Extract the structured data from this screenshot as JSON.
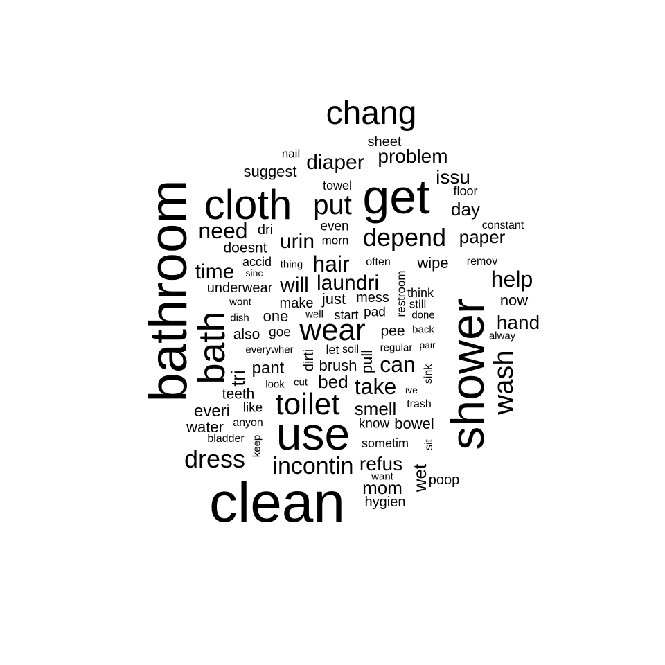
{
  "text_color": "#000000",
  "background": "#ffffff",
  "words": [
    {
      "text": "clean"
    },
    {
      "text": "bathroom"
    },
    {
      "text": "shower"
    },
    {
      "text": "get"
    },
    {
      "text": "use"
    },
    {
      "text": "cloth"
    },
    {
      "text": "bath"
    },
    {
      "text": "chang"
    },
    {
      "text": "wear"
    },
    {
      "text": "toilet"
    },
    {
      "text": "wash"
    },
    {
      "text": "put"
    },
    {
      "text": "depend"
    },
    {
      "text": "dress"
    },
    {
      "text": "incontin"
    },
    {
      "text": "hair"
    },
    {
      "text": "help"
    },
    {
      "text": "need"
    },
    {
      "text": "urin"
    },
    {
      "text": "diaper"
    },
    {
      "text": "problem"
    },
    {
      "text": "time"
    },
    {
      "text": "laundri"
    },
    {
      "text": "will"
    },
    {
      "text": "hand"
    },
    {
      "text": "can"
    },
    {
      "text": "take"
    },
    {
      "text": "issu"
    },
    {
      "text": "day"
    },
    {
      "text": "paper"
    },
    {
      "text": "refus"
    },
    {
      "text": "smell"
    },
    {
      "text": "bed"
    },
    {
      "text": "mom"
    },
    {
      "text": "pant"
    },
    {
      "text": "everi"
    },
    {
      "text": "tri"
    },
    {
      "text": "wet"
    },
    {
      "text": "suggest"
    },
    {
      "text": "wipe"
    },
    {
      "text": "one"
    },
    {
      "text": "just"
    },
    {
      "text": "now"
    },
    {
      "text": "teeth"
    },
    {
      "text": "water"
    },
    {
      "text": "bowel"
    },
    {
      "text": "brush"
    },
    {
      "text": "sheet"
    },
    {
      "text": "pull"
    },
    {
      "text": "doesnt"
    },
    {
      "text": "also"
    },
    {
      "text": "pee"
    },
    {
      "text": "make"
    },
    {
      "text": "underwear"
    },
    {
      "text": "hygien"
    },
    {
      "text": "mess"
    },
    {
      "text": "dirti"
    },
    {
      "text": "poop"
    },
    {
      "text": "even"
    },
    {
      "text": "towel"
    },
    {
      "text": "dri"
    },
    {
      "text": "goe"
    },
    {
      "text": "pad"
    },
    {
      "text": "think"
    },
    {
      "text": "floor"
    },
    {
      "text": "sometim"
    },
    {
      "text": "know"
    },
    {
      "text": "accid"
    },
    {
      "text": "like"
    },
    {
      "text": "start"
    },
    {
      "text": "let"
    },
    {
      "text": "nail"
    },
    {
      "text": "restroom"
    },
    {
      "text": "still"
    },
    {
      "text": "morn"
    },
    {
      "text": "often"
    },
    {
      "text": "remov"
    },
    {
      "text": "soil"
    },
    {
      "text": "sink"
    },
    {
      "text": "trash"
    },
    {
      "text": "thing"
    },
    {
      "text": "sit"
    },
    {
      "text": "bladder"
    },
    {
      "text": "anyon"
    },
    {
      "text": "constant"
    },
    {
      "text": "regular"
    },
    {
      "text": "back"
    },
    {
      "text": "done"
    },
    {
      "text": "wont"
    },
    {
      "text": "dish"
    },
    {
      "text": "well"
    },
    {
      "text": "everywher"
    },
    {
      "text": "cut"
    },
    {
      "text": "look"
    },
    {
      "text": "want"
    },
    {
      "text": "alway"
    },
    {
      "text": "pair"
    },
    {
      "text": "keep"
    },
    {
      "text": "sinc"
    },
    {
      "text": "ive"
    }
  ]
}
